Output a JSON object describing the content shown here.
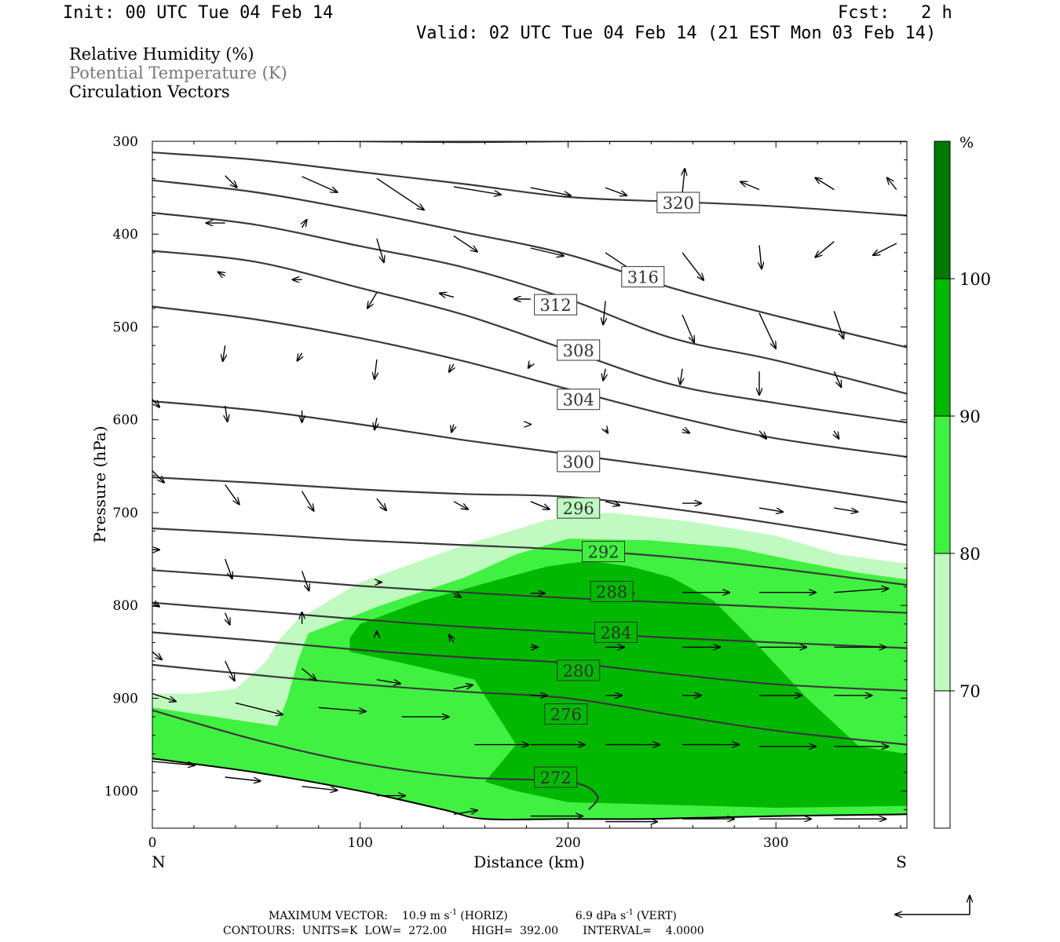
{
  "header": {
    "init": "Init: 00 UTC Tue 04 Feb 14",
    "fcst": "Fcst:   2 h",
    "valid": "Valid: 02 UTC Tue 04 Feb 14 (21 EST Mon 03 Feb 14)"
  },
  "legend": {
    "rh": "Relative Humidity (%)",
    "theta": "Potential Temperature (K)",
    "vectors": "Circulation Vectors"
  },
  "footer": {
    "max_vector_label": "MAXIMUM VECTOR:",
    "horiz_value": "10.9 m s",
    "horiz_exp": "-1",
    "horiz_tag": "(HORIZ)",
    "vert_value": "6.9 dPa s",
    "vert_exp": "-1",
    "vert_tag": "(VERT)",
    "contours": "CONTOURS:  UNITS=K  LOW=  272.00       HIGH=  392.00       INTERVAL=    4.0000"
  },
  "colors": {
    "rh70": "#c0fac0",
    "rh80": "#41f141",
    "rh90": "#00b800",
    "rh100": "#007a00",
    "contour": "#3a3a3a"
  },
  "chart_data": {
    "type": "cross-section",
    "xlabel": "Distance (km)",
    "ylabel": "Pressure (hPa)",
    "xlim": [
      0,
      363
    ],
    "ylim": [
      1040,
      300
    ],
    "x_ticks": [
      0,
      100,
      200,
      300
    ],
    "y_ticks": [
      300,
      400,
      500,
      600,
      700,
      800,
      900,
      1000
    ],
    "x_end_labels": {
      "left": "N",
      "right": "S"
    },
    "colorbar": {
      "unit": "%",
      "levels": [
        70,
        80,
        90,
        100
      ],
      "level_labels": [
        "70",
        "80",
        "90",
        "100"
      ]
    },
    "theta_contours": [
      {
        "label": "320",
        "values": [
          320
        ],
        "x": [
          60,
          100,
          150,
          200,
          250,
          300,
          363
        ],
        "p": [
          300,
          300,
          301,
          300,
          300,
          300,
          300
        ]
      },
      {
        "label": "320",
        "values": [
          320
        ],
        "x": [
          0,
          50,
          100,
          150,
          200,
          250,
          300,
          363
        ],
        "p": [
          312,
          320,
          333,
          346,
          360,
          365,
          370,
          380
        ]
      },
      {
        "label": "316",
        "values": [
          316
        ],
        "x": [
          0,
          50,
          100,
          150,
          200,
          250,
          300,
          363
        ],
        "p": [
          342,
          355,
          375,
          398,
          422,
          458,
          488,
          522
        ]
      },
      {
        "label": "312",
        "values": [
          312
        ],
        "x": [
          0,
          50,
          100,
          150,
          200,
          250,
          300,
          363
        ],
        "p": [
          377,
          390,
          413,
          436,
          470,
          512,
          536,
          572
        ]
      },
      {
        "label": "308",
        "values": [
          308
        ],
        "x": [
          0,
          50,
          100,
          150,
          200,
          250,
          300,
          363
        ],
        "p": [
          418,
          430,
          458,
          487,
          525,
          562,
          582,
          603
        ]
      },
      {
        "label": "304",
        "values": [
          304
        ],
        "x": [
          0,
          50,
          100,
          150,
          200,
          250,
          300,
          363
        ],
        "p": [
          478,
          492,
          512,
          537,
          567,
          596,
          620,
          640
        ]
      },
      {
        "label": "300",
        "values": [
          300
        ],
        "x": [
          0,
          50,
          100,
          150,
          200,
          250,
          300,
          363
        ],
        "p": [
          580,
          590,
          605,
          622,
          637,
          652,
          668,
          689
        ]
      },
      {
        "label": "296",
        "values": [
          296
        ],
        "x": [
          0,
          50,
          100,
          150,
          200,
          250,
          300,
          363
        ],
        "p": [
          662,
          668,
          675,
          680,
          683,
          696,
          712,
          735
        ]
      },
      {
        "label": "292",
        "values": [
          292
        ],
        "x": [
          0,
          50,
          100,
          150,
          200,
          250,
          300,
          363
        ],
        "p": [
          717,
          723,
          730,
          735,
          740,
          748,
          760,
          778
        ]
      },
      {
        "label": "288",
        "values": [
          288
        ],
        "x": [
          0,
          50,
          100,
          150,
          200,
          250,
          300,
          363
        ],
        "p": [
          762,
          770,
          779,
          786,
          792,
          797,
          802,
          808
        ]
      },
      {
        "label": "284",
        "values": [
          284
        ],
        "x": [
          0,
          50,
          100,
          150,
          200,
          250,
          300,
          363
        ],
        "p": [
          797,
          806,
          815,
          823,
          829,
          835,
          840,
          846
        ]
      },
      {
        "label": "280",
        "values": [
          280
        ],
        "x": [
          0,
          50,
          100,
          150,
          200,
          250,
          300,
          363
        ],
        "p": [
          829,
          838,
          848,
          856,
          862,
          874,
          885,
          892
        ]
      },
      {
        "label": "276",
        "values": [
          276
        ],
        "x": [
          0,
          50,
          100,
          150,
          200,
          250,
          300,
          363
        ],
        "p": [
          864,
          875,
          885,
          893,
          900,
          918,
          935,
          950
        ]
      },
      {
        "label": "272",
        "values": [
          272
        ],
        "x": [
          0,
          50,
          100,
          150,
          200,
          214,
          210
        ],
        "p": [
          913,
          945,
          970,
          985,
          990,
          1005,
          1020
        ]
      }
    ],
    "contour_labels": [
      {
        "text": "320",
        "x": 253,
        "p": 366
      },
      {
        "text": "316",
        "x": 236,
        "p": 446
      },
      {
        "text": "312",
        "x": 194,
        "p": 476
      },
      {
        "text": "308",
        "x": 205,
        "p": 525
      },
      {
        "text": "304",
        "x": 205,
        "p": 578
      },
      {
        "text": "300",
        "x": 205,
        "p": 645
      },
      {
        "text": "296",
        "x": 205,
        "p": 695
      },
      {
        "text": "292",
        "x": 217,
        "p": 742
      },
      {
        "text": "288",
        "x": 221,
        "p": 785
      },
      {
        "text": "284",
        "x": 223,
        "p": 829
      },
      {
        "text": "280",
        "x": 205,
        "p": 870
      },
      {
        "text": "276",
        "x": 199,
        "p": 917
      },
      {
        "text": "272",
        "x": 194,
        "p": 985
      }
    ],
    "terrain": {
      "x": [
        0,
        50,
        100,
        140,
        160,
        200,
        240,
        300,
        363
      ],
      "p": [
        965,
        980,
        1000,
        1020,
        1030,
        1030,
        1030,
        1027,
        1025
      ]
    },
    "rh_regions": [
      {
        "level": 70,
        "x": [
          0,
          20,
          40,
          55,
          60,
          70,
          100,
          150,
          190,
          220,
          260,
          300,
          330,
          363,
          363,
          300,
          250,
          200,
          160,
          140,
          100,
          50,
          0
        ],
        "p": [
          895,
          895,
          890,
          860,
          840,
          815,
          775,
          735,
          708,
          700,
          710,
          725,
          745,
          755,
          1025,
          1027,
          1030,
          1030,
          1030,
          1020,
          1000,
          980,
          965
        ]
      },
      {
        "level": 80,
        "x": [
          0,
          30,
          60,
          65,
          70,
          75,
          110,
          150,
          175,
          200,
          240,
          280,
          310,
          340,
          363,
          363,
          300,
          250,
          200,
          160,
          140,
          100,
          50,
          0
        ],
        "p": [
          910,
          920,
          930,
          900,
          860,
          830,
          800,
          770,
          745,
          728,
          730,
          738,
          752,
          765,
          772,
          1025,
          1027,
          1030,
          1030,
          1030,
          1020,
          1000,
          980,
          965
        ]
      },
      {
        "level": 90,
        "x": [
          95,
          100,
          130,
          170,
          190,
          210,
          230,
          250,
          270,
          290,
          315,
          340,
          363,
          363,
          300,
          250,
          200,
          175,
          160,
          175,
          155,
          120,
          95
        ],
        "p": [
          835,
          820,
          795,
          770,
          758,
          752,
          758,
          770,
          795,
          840,
          900,
          952,
          960,
          1016,
          1018,
          1015,
          1012,
          1000,
          990,
          950,
          880,
          862,
          850
        ]
      }
    ],
    "vectors": [
      {
        "x": 35,
        "p": 337,
        "u": 5,
        "w": 0.3
      },
      {
        "x": 72,
        "p": 338,
        "u": 15,
        "w": 0.4
      },
      {
        "x": 108,
        "p": 340,
        "u": 20,
        "w": 0.8
      },
      {
        "x": 145,
        "p": 349,
        "u": 20,
        "w": 0.2
      },
      {
        "x": 182,
        "p": 350,
        "u": 17,
        "w": 0.2
      },
      {
        "x": 218,
        "p": 350,
        "u": 9,
        "w": 0.2
      },
      {
        "x": 255,
        "p": 355,
        "u": 1,
        "w": -0.6
      },
      {
        "x": 292,
        "p": 352,
        "u": -8,
        "w": -0.2
      },
      {
        "x": 328,
        "p": 352,
        "u": -8,
        "w": -0.3
      },
      {
        "x": 358,
        "p": 352,
        "u": -4,
        "w": -0.3
      },
      {
        "x": 35,
        "p": 388,
        "u": -8,
        "w": 0.0
      },
      {
        "x": 72,
        "p": 393,
        "u": 2,
        "w": -0.2
      },
      {
        "x": 108,
        "p": 405,
        "u": 3,
        "w": 0.6
      },
      {
        "x": 145,
        "p": 402,
        "u": 10,
        "w": 0.4
      },
      {
        "x": 182,
        "p": 415,
        "u": 14,
        "w": 0.2
      },
      {
        "x": 218,
        "p": 420,
        "u": 15,
        "w": 0.6
      },
      {
        "x": 255,
        "p": 420,
        "u": 9,
        "w": 0.7
      },
      {
        "x": 292,
        "p": 412,
        "u": 1,
        "w": 0.6
      },
      {
        "x": 328,
        "p": 408,
        "u": -8,
        "w": 0.4
      },
      {
        "x": 358,
        "p": 410,
        "u": -10,
        "w": 0.3
      },
      {
        "x": 35,
        "p": 445,
        "u": -3,
        "w": -0.1
      },
      {
        "x": 72,
        "p": 449,
        "u": -4,
        "w": 0.0
      },
      {
        "x": 108,
        "p": 463,
        "u": -4,
        "w": 0.4
      },
      {
        "x": 145,
        "p": 468,
        "u": -6,
        "w": -0.1
      },
      {
        "x": 182,
        "p": 470,
        "u": -7,
        "w": 0.0
      },
      {
        "x": 218,
        "p": 472,
        "u": -1,
        "w": 0.6
      },
      {
        "x": 255,
        "p": 487,
        "u": 5,
        "w": 0.7
      },
      {
        "x": 292,
        "p": 485,
        "u": 7,
        "w": 0.9
      },
      {
        "x": 328,
        "p": 483,
        "u": 4,
        "w": 0.7
      },
      {
        "x": 35,
        "p": 520,
        "u": -1,
        "w": 0.4
      },
      {
        "x": 72,
        "p": 528,
        "u": -2,
        "w": 0.2
      },
      {
        "x": 108,
        "p": 535,
        "u": -1,
        "w": 0.5
      },
      {
        "x": 145,
        "p": 540,
        "u": -2,
        "w": 0.2
      },
      {
        "x": 182,
        "p": 540,
        "u": -1,
        "w": 0.1
      },
      {
        "x": 218,
        "p": 545,
        "u": -1,
        "w": 0.3
      },
      {
        "x": 255,
        "p": 545,
        "u": -1,
        "w": 0.4
      },
      {
        "x": 292,
        "p": 548,
        "u": 0,
        "w": 0.6
      },
      {
        "x": 328,
        "p": 548,
        "u": 3,
        "w": 0.4
      },
      {
        "x": 0,
        "p": 578,
        "u": 3,
        "w": 0.2
      },
      {
        "x": 35,
        "p": 585,
        "u": 1,
        "w": 0.4
      },
      {
        "x": 72,
        "p": 590,
        "u": 0,
        "w": 0.3
      },
      {
        "x": 108,
        "p": 598,
        "u": -1,
        "w": 0.3
      },
      {
        "x": 145,
        "p": 605,
        "u": -1,
        "w": 0.2
      },
      {
        "x": 182,
        "p": 605,
        "u": 0,
        "w": 0.0
      },
      {
        "x": 218,
        "p": 610,
        "u": 1,
        "w": 0.1
      },
      {
        "x": 255,
        "p": 610,
        "u": 3,
        "w": 0.1
      },
      {
        "x": 292,
        "p": 612,
        "u": 3,
        "w": 0.2
      },
      {
        "x": 328,
        "p": 612,
        "u": 2,
        "w": 0.2
      },
      {
        "x": 0,
        "p": 655,
        "u": 5,
        "w": 0.3
      },
      {
        "x": 35,
        "p": 670,
        "u": 6,
        "w": 0.5
      },
      {
        "x": 72,
        "p": 677,
        "u": 5,
        "w": 0.5
      },
      {
        "x": 108,
        "p": 685,
        "u": 4,
        "w": 0.3
      },
      {
        "x": 145,
        "p": 688,
        "u": 6,
        "w": 0.2
      },
      {
        "x": 182,
        "p": 688,
        "u": 8,
        "w": 0.2
      },
      {
        "x": 218,
        "p": 688,
        "u": 6,
        "w": 0.1
      },
      {
        "x": 255,
        "p": 690,
        "u": 8,
        "w": 0.0
      },
      {
        "x": 292,
        "p": 695,
        "u": 10,
        "w": 0.1
      },
      {
        "x": 328,
        "p": 695,
        "u": 10,
        "w": 0.1
      },
      {
        "x": 0,
        "p": 740,
        "u": 3,
        "w": 0.0
      },
      {
        "x": 35,
        "p": 750,
        "u": 3,
        "w": 0.5
      },
      {
        "x": 72,
        "p": 763,
        "u": 3,
        "w": 0.5
      },
      {
        "x": 108,
        "p": 775,
        "u": 2,
        "w": 0.0
      },
      {
        "x": 145,
        "p": 787,
        "u": 3,
        "w": 0.1
      },
      {
        "x": 182,
        "p": 787,
        "u": 6,
        "w": 0.0
      },
      {
        "x": 218,
        "p": 787,
        "u": 12,
        "w": 0.0
      },
      {
        "x": 255,
        "p": 786,
        "u": 20,
        "w": 0.0
      },
      {
        "x": 292,
        "p": 786,
        "u": 24,
        "w": 0.0
      },
      {
        "x": 328,
        "p": 786,
        "u": 23,
        "w": -0.1
      },
      {
        "x": 0,
        "p": 797,
        "u": 3,
        "w": 0.1
      },
      {
        "x": 35,
        "p": 808,
        "u": 2,
        "w": 0.3
      },
      {
        "x": 72,
        "p": 820,
        "u": 0,
        "w": -0.3
      },
      {
        "x": 108,
        "p": 832,
        "u": 0,
        "w": -0.1
      },
      {
        "x": 145,
        "p": 840,
        "u": -2,
        "w": -0.2
      },
      {
        "x": 182,
        "p": 845,
        "u": 3,
        "w": 0.0
      },
      {
        "x": 218,
        "p": 845,
        "u": 8,
        "w": 0.0
      },
      {
        "x": 255,
        "p": 845,
        "u": 16,
        "w": 0.0
      },
      {
        "x": 292,
        "p": 845,
        "u": 20,
        "w": 0.0
      },
      {
        "x": 328,
        "p": 845,
        "u": 22,
        "w": 0.0
      },
      {
        "x": 0,
        "p": 850,
        "u": 4,
        "w": 0.2
      },
      {
        "x": 35,
        "p": 860,
        "u": 4,
        "w": 0.5
      },
      {
        "x": 72,
        "p": 868,
        "u": 6,
        "w": 0.3
      },
      {
        "x": 108,
        "p": 880,
        "u": 10,
        "w": 0.1
      },
      {
        "x": 145,
        "p": 890,
        "u": 8,
        "w": -0.1
      },
      {
        "x": 182,
        "p": 897,
        "u": 7,
        "w": 0.0
      },
      {
        "x": 218,
        "p": 897,
        "u": 7,
        "w": 0.0
      },
      {
        "x": 255,
        "p": 897,
        "u": 8,
        "w": 0.0
      },
      {
        "x": 292,
        "p": 897,
        "u": 18,
        "w": 0.0
      },
      {
        "x": 328,
        "p": 897,
        "u": 16,
        "w": 0.0
      },
      {
        "x": 0,
        "p": 895,
        "u": 10,
        "w": 0.2
      },
      {
        "x": 40,
        "p": 905,
        "u": 20,
        "w": 0.3
      },
      {
        "x": 80,
        "p": 910,
        "u": 20,
        "w": 0.1
      },
      {
        "x": 120,
        "p": 920,
        "u": 20,
        "w": 0.0
      },
      {
        "x": 155,
        "p": 950,
        "u": 23,
        "w": 0.0
      },
      {
        "x": 182,
        "p": 950,
        "u": 23,
        "w": 0.0
      },
      {
        "x": 218,
        "p": 950,
        "u": 23,
        "w": 0.0
      },
      {
        "x": 255,
        "p": 950,
        "u": 24,
        "w": 0.0
      },
      {
        "x": 292,
        "p": 952,
        "u": 24,
        "w": 0.0
      },
      {
        "x": 328,
        "p": 952,
        "u": 23,
        "w": 0.0
      },
      {
        "x": 0,
        "p": 968,
        "u": 18,
        "w": 0.1
      },
      {
        "x": 35,
        "p": 985,
        "u": 15,
        "w": 0.1
      },
      {
        "x": 72,
        "p": 995,
        "u": 15,
        "w": 0.1
      },
      {
        "x": 108,
        "p": 1005,
        "u": 12,
        "w": 0.0
      },
      {
        "x": 145,
        "p": 1025,
        "u": 10,
        "w": -0.1
      },
      {
        "x": 182,
        "p": 1027,
        "u": 22,
        "w": 0.0
      },
      {
        "x": 218,
        "p": 1033,
        "u": 22,
        "w": 0.0
      },
      {
        "x": 255,
        "p": 1030,
        "u": 22,
        "w": 0.0
      },
      {
        "x": 292,
        "p": 1030,
        "u": 22,
        "w": 0.0
      },
      {
        "x": 328,
        "p": 1030,
        "u": 22,
        "w": 0.0
      }
    ]
  }
}
